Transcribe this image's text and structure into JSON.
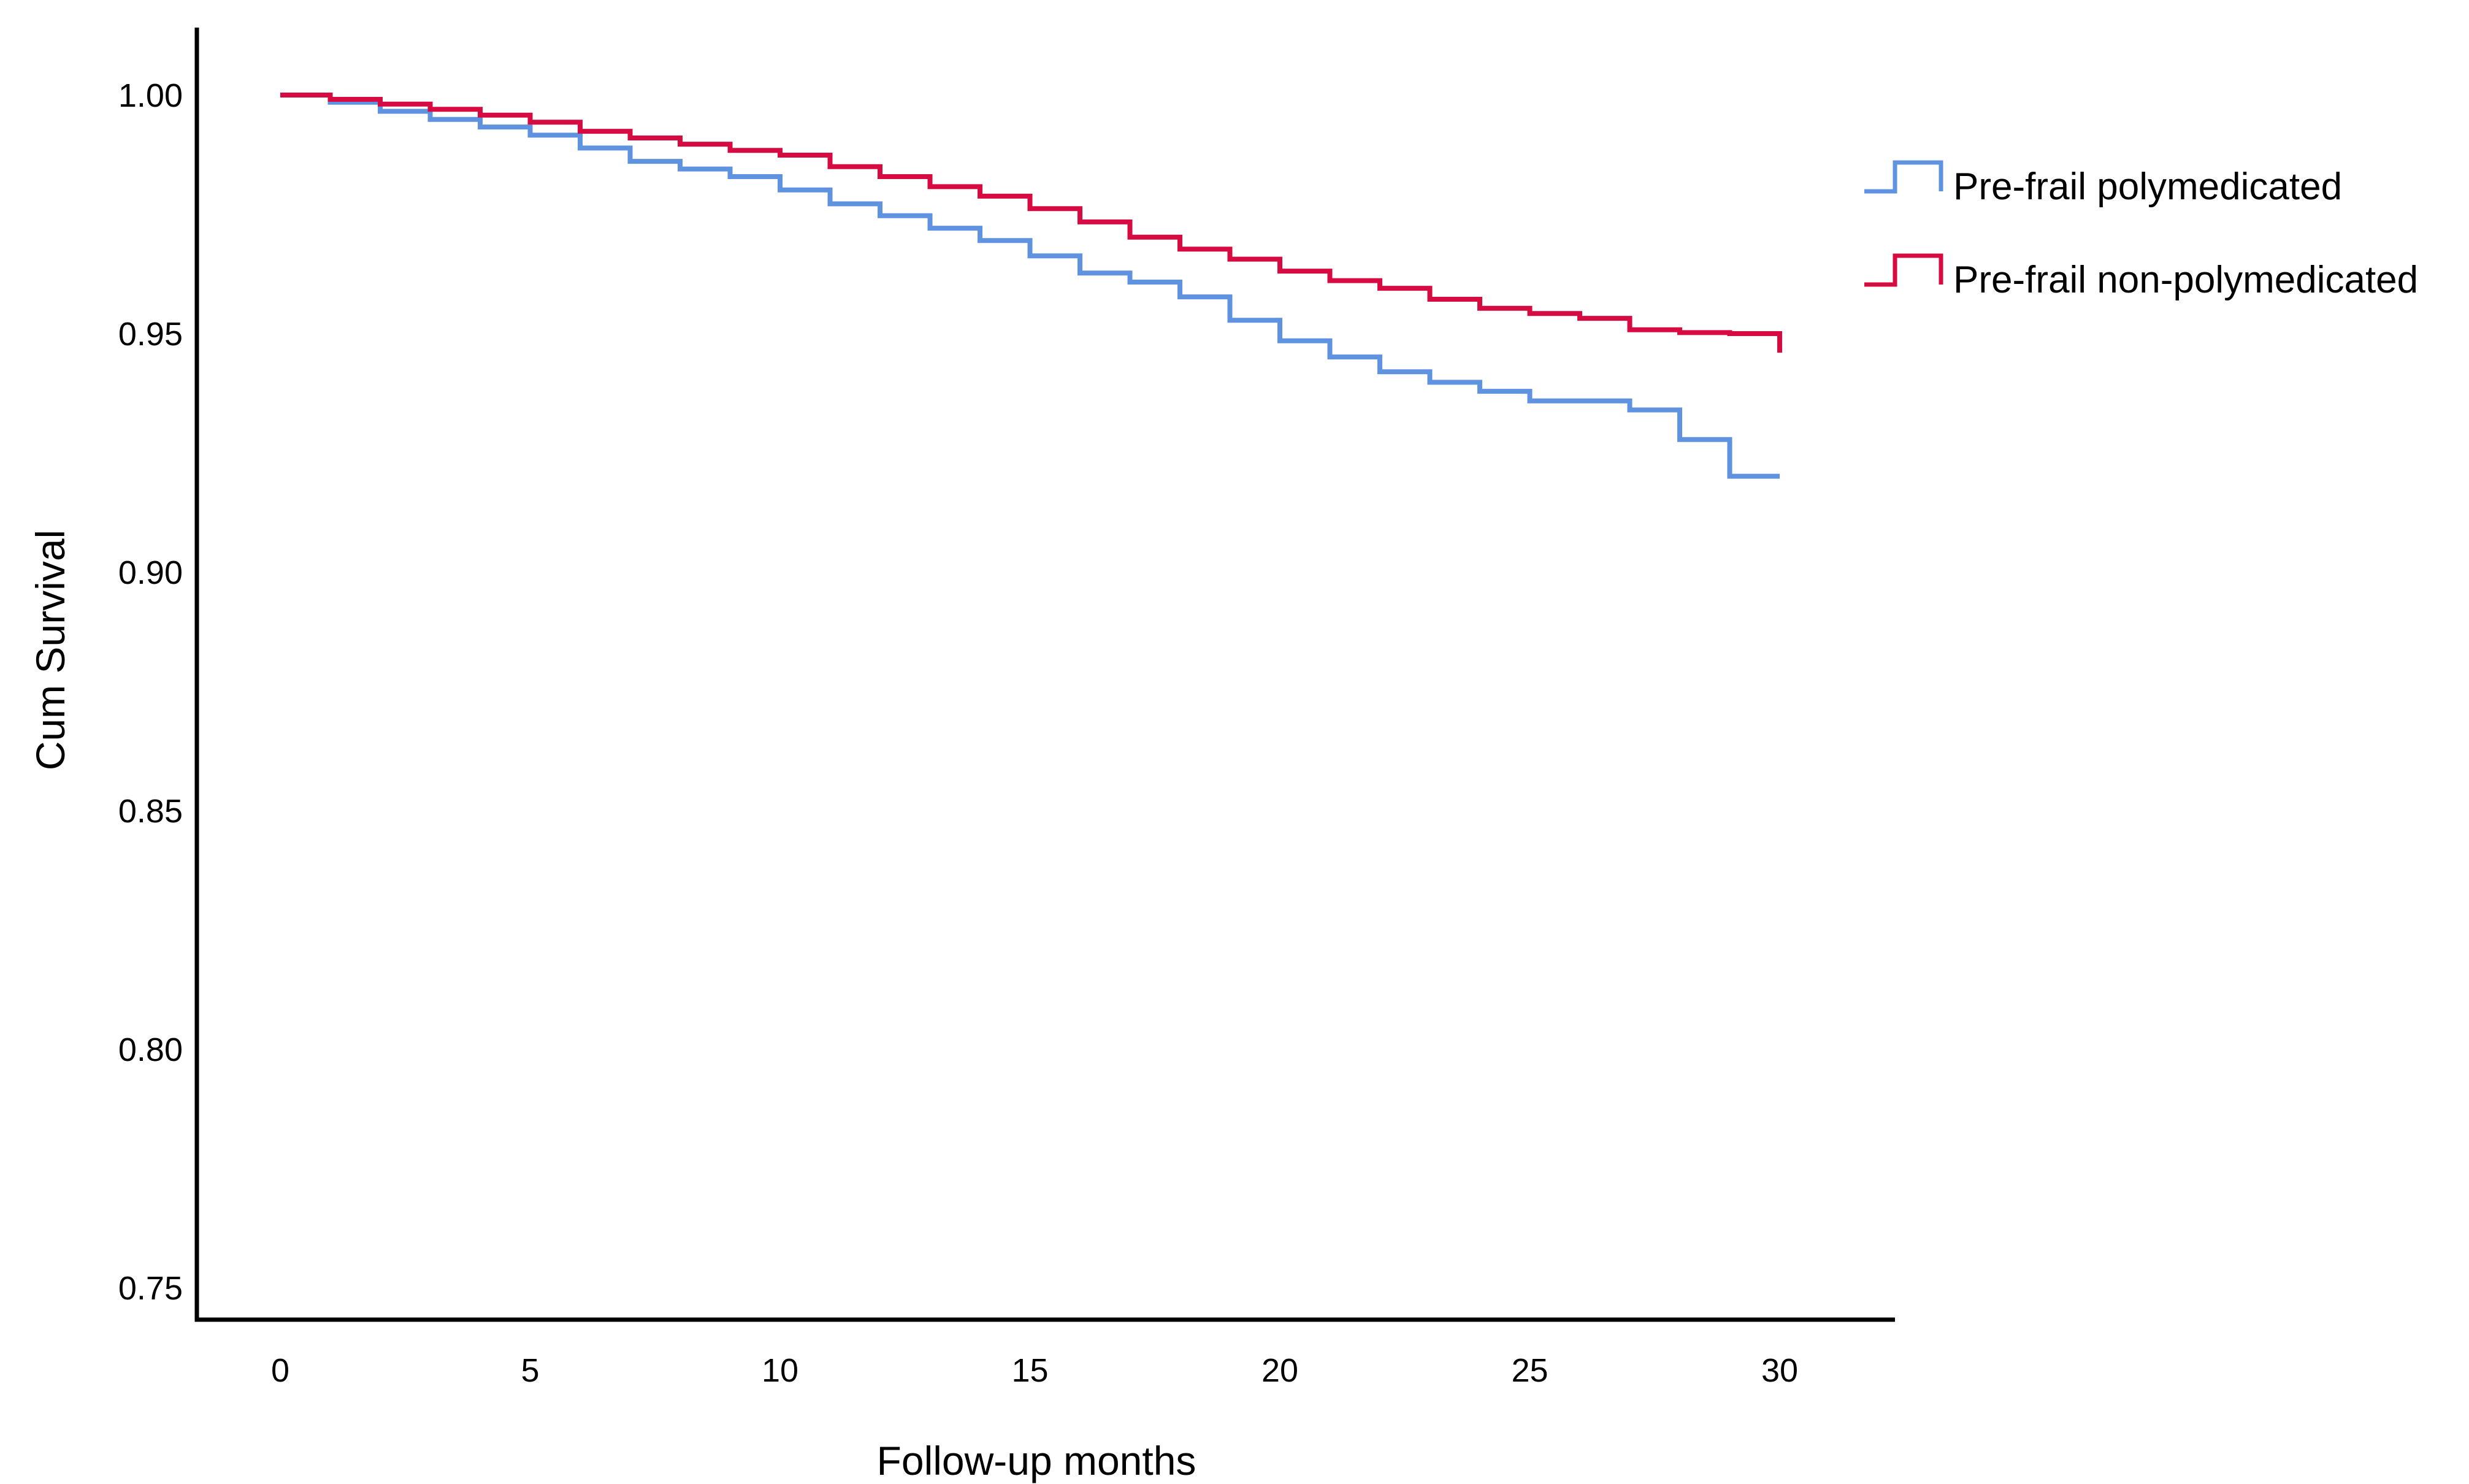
{
  "figure": {
    "x_axis_title": "Follow-up months",
    "y_axis_title": "Cum Survival",
    "background_color": "#ffffff",
    "axis_color": "#000000"
  },
  "legend": {
    "position": "top-right",
    "items": [
      {
        "id": "polymedicated",
        "label": "Pre-frail polymedicated",
        "color": "#5f93e0"
      },
      {
        "id": "non-polymedicated",
        "label": "Pre-frail non-polymedicated",
        "color": "#d60b41"
      }
    ]
  },
  "chart_data": {
    "type": "line",
    "subtype": "kaplan-meier-step",
    "title": "",
    "xlabel": "Follow-up months",
    "ylabel": "Cum Survival",
    "xlim": [
      0,
      30
    ],
    "ylim": [
      0.75,
      1.0
    ],
    "grid": false,
    "legend_position": "top-right",
    "x_ticks": [
      0,
      5,
      10,
      15,
      20,
      25,
      30
    ],
    "x_tick_labels": [
      "0",
      "5",
      "10",
      "15",
      "20",
      "25",
      "30"
    ],
    "y_ticks": [
      1.0,
      0.95,
      0.9,
      0.85,
      0.8,
      0.75
    ],
    "y_tick_labels": [
      "1.00",
      "0.95",
      "0.90",
      "0.85",
      "0.80",
      "0.75"
    ],
    "x_unit": "months",
    "series": [
      {
        "id": "polymedicated",
        "name": "Pre-frail polymedicated",
        "color": "#5f93e0",
        "step_months": [
          0,
          1,
          2,
          3,
          4,
          5,
          6,
          7,
          8,
          9,
          10,
          11,
          12,
          13,
          14,
          15,
          16,
          17,
          18,
          19,
          20,
          21,
          22,
          23,
          24,
          25,
          26,
          27,
          28,
          29
        ],
        "levels": [
          1.0,
          0.9985,
          0.9966,
          0.9949,
          0.9933,
          0.9916,
          0.9889,
          0.9861,
          0.9845,
          0.9829,
          0.9801,
          0.9772,
          0.9747,
          0.9721,
          0.9695,
          0.9663,
          0.9627,
          0.9608,
          0.9577,
          0.9528,
          0.9485,
          0.9451,
          0.942,
          0.9398,
          0.9379,
          0.9359,
          0.9359,
          0.934,
          0.9278,
          0.9201
        ],
        "final_month": 30,
        "final_value": 0.9201
      },
      {
        "id": "non-polymedicated",
        "name": "Pre-frail non-polymedicated",
        "color": "#d60b41",
        "step_months": [
          0,
          1,
          2,
          3,
          4,
          5,
          6,
          7,
          8,
          9,
          10,
          11,
          12,
          13,
          14,
          15,
          16,
          17,
          18,
          19,
          20,
          21,
          22,
          23,
          24,
          25,
          26,
          27,
          28,
          29
        ],
        "levels": [
          1.0,
          0.9991,
          0.9981,
          0.997,
          0.9958,
          0.9943,
          0.9924,
          0.991,
          0.9897,
          0.9884,
          0.9874,
          0.985,
          0.9829,
          0.9808,
          0.9788,
          0.9762,
          0.9734,
          0.9702,
          0.9677,
          0.9656,
          0.9631,
          0.9611,
          0.9595,
          0.9572,
          0.9553,
          0.9542,
          0.9532,
          0.9508,
          0.9502,
          0.95
        ],
        "final_month": 30,
        "final_value": 0.946
      }
    ]
  }
}
